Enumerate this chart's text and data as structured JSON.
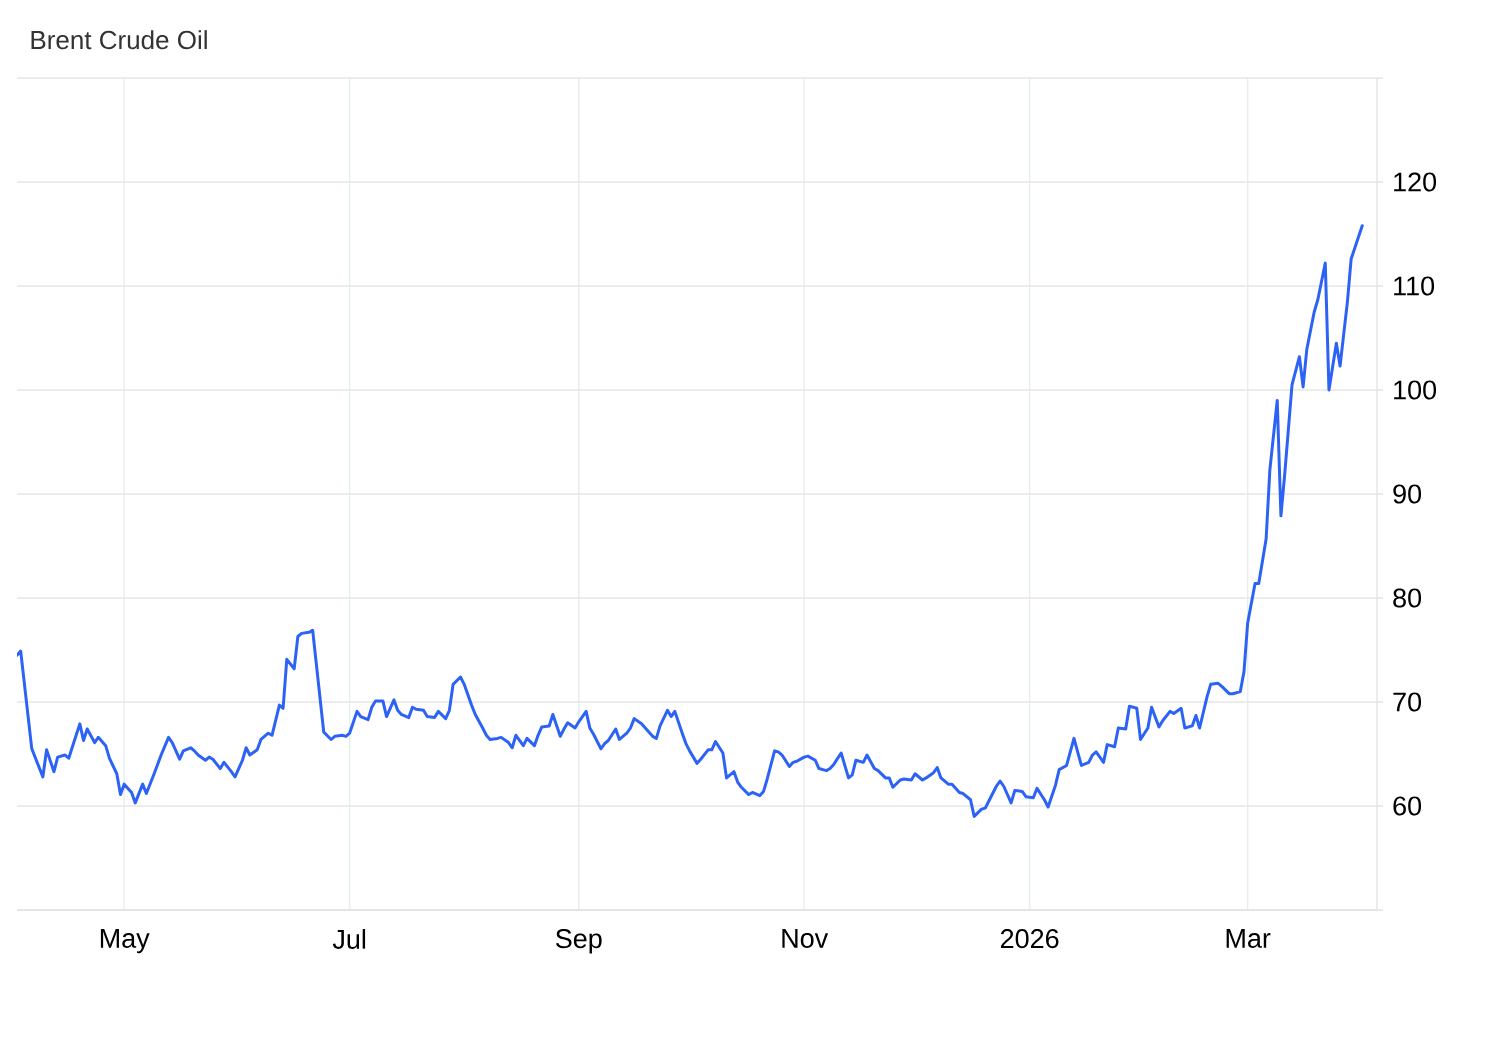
{
  "chart_data": {
    "type": "line",
    "title": "Brent Crude Oil",
    "x": [
      "2025-04-02",
      "2025-04-03",
      "2025-04-06",
      "2025-04-09",
      "2025-04-10",
      "2025-04-12",
      "2025-04-13",
      "2025-04-15",
      "2025-04-16",
      "2025-04-17",
      "2025-04-19",
      "2025-04-20",
      "2025-04-21",
      "2025-04-23",
      "2025-04-24",
      "2025-04-26",
      "2025-04-27",
      "2025-04-29",
      "2025-04-30",
      "2025-05-01",
      "2025-05-03",
      "2025-05-04",
      "2025-05-06",
      "2025-05-07",
      "2025-05-09",
      "2025-05-11",
      "2025-05-13",
      "2025-05-14",
      "2025-05-16",
      "2025-05-17",
      "2025-05-19",
      "2025-05-20",
      "2025-05-21",
      "2025-05-23",
      "2025-05-24",
      "2025-05-25",
      "2025-05-27",
      "2025-05-28",
      "2025-05-30",
      "2025-05-31",
      "2025-06-02",
      "2025-06-03",
      "2025-06-04",
      "2025-06-06",
      "2025-06-07",
      "2025-06-09",
      "2025-06-10",
      "2025-06-12",
      "2025-06-13",
      "2025-06-14",
      "2025-06-16",
      "2025-06-17",
      "2025-06-18",
      "2025-06-20",
      "2025-06-21",
      "2025-06-24",
      "2025-06-26",
      "2025-06-27",
      "2025-06-29",
      "2025-06-30",
      "2025-07-01",
      "2025-07-03",
      "2025-07-04",
      "2025-07-06",
      "2025-07-07",
      "2025-07-08",
      "2025-07-10",
      "2025-07-11",
      "2025-07-13",
      "2025-07-14",
      "2025-07-15",
      "2025-07-17",
      "2025-07-18",
      "2025-07-19",
      "2025-07-21",
      "2025-07-22",
      "2025-07-24",
      "2025-07-25",
      "2025-07-27",
      "2025-07-28",
      "2025-07-29",
      "2025-07-31",
      "2025-08-01",
      "2025-08-03",
      "2025-08-04",
      "2025-08-06",
      "2025-08-07",
      "2025-08-08",
      "2025-08-10",
      "2025-08-11",
      "2025-08-13",
      "2025-08-14",
      "2025-08-15",
      "2025-08-17",
      "2025-08-18",
      "2025-08-20",
      "2025-08-21",
      "2025-08-22",
      "2025-08-24",
      "2025-08-25",
      "2025-08-27",
      "2025-08-28",
      "2025-08-29",
      "2025-08-31",
      "2025-09-01",
      "2025-09-03",
      "2025-09-04",
      "2025-09-05",
      "2025-09-07",
      "2025-09-08",
      "2025-09-09",
      "2025-09-11",
      "2025-09-12",
      "2025-09-14",
      "2025-09-15",
      "2025-09-16",
      "2025-09-18",
      "2025-09-19",
      "2025-09-21",
      "2025-09-22",
      "2025-09-23",
      "2025-09-25",
      "2025-09-26",
      "2025-09-27",
      "2025-09-29",
      "2025-09-30",
      "2025-10-01",
      "2025-10-03",
      "2025-10-04",
      "2025-10-06",
      "2025-10-07",
      "2025-10-08",
      "2025-10-10",
      "2025-10-11",
      "2025-10-13",
      "2025-10-14",
      "2025-10-15",
      "2025-10-17",
      "2025-10-18",
      "2025-10-20",
      "2025-10-21",
      "2025-10-22",
      "2025-10-24",
      "2025-10-25",
      "2025-10-26",
      "2025-10-28",
      "2025-10-29",
      "2025-10-30",
      "2025-11-01",
      "2025-11-02",
      "2025-11-04",
      "2025-11-05",
      "2025-11-07",
      "2025-11-08",
      "2025-11-09",
      "2025-11-11",
      "2025-11-13",
      "2025-11-14",
      "2025-11-15",
      "2025-11-17",
      "2025-11-18",
      "2025-11-20",
      "2025-11-21",
      "2025-11-23",
      "2025-11-24",
      "2025-11-25",
      "2025-11-27",
      "2025-11-28",
      "2025-11-30",
      "2025-12-01",
      "2025-12-03",
      "2025-12-04",
      "2025-12-06",
      "2025-12-07",
      "2025-12-08",
      "2025-12-10",
      "2025-12-11",
      "2025-12-13",
      "2025-12-14",
      "2025-12-16",
      "2025-12-17",
      "2025-12-19",
      "2025-12-20",
      "2025-12-21",
      "2025-12-23",
      "2025-12-24",
      "2025-12-25",
      "2025-12-27",
      "2025-12-28",
      "2025-12-30",
      "2025-12-31",
      "2026-01-02",
      "2026-01-03",
      "2026-01-05",
      "2026-01-06",
      "2026-01-08",
      "2026-01-09",
      "2026-01-11",
      "2026-01-13",
      "2026-01-15",
      "2026-01-17",
      "2026-01-18",
      "2026-01-19",
      "2026-01-21",
      "2026-01-22",
      "2026-01-24",
      "2026-01-25",
      "2026-01-27",
      "2026-01-28",
      "2026-01-30",
      "2026-01-31",
      "2026-02-02",
      "2026-02-03",
      "2026-02-05",
      "2026-02-06",
      "2026-02-08",
      "2026-02-09",
      "2026-02-11",
      "2026-02-12",
      "2026-02-14",
      "2026-02-15",
      "2026-02-16",
      "2026-02-18",
      "2026-02-19",
      "2026-02-21",
      "2026-02-22",
      "2026-02-24",
      "2026-02-25",
      "2026-02-27",
      "2026-02-28",
      "2026-03-01",
      "2026-03-03",
      "2026-03-04",
      "2026-03-06",
      "2026-03-07",
      "2026-03-09",
      "2026-03-10",
      "2026-03-11",
      "2026-03-13",
      "2026-03-15",
      "2026-03-16",
      "2026-03-17",
      "2026-03-19",
      "2026-03-20",
      "2026-03-22",
      "2026-03-23",
      "2026-03-25",
      "2026-03-26",
      "2026-03-28",
      "2026-03-29",
      "2026-04-01"
    ],
    "series": [
      {
        "color": "#2d63f5",
        "values": [
          74.5,
          74.9,
          65.5,
          62.8,
          65.4,
          63.3,
          64.7,
          64.9,
          64.6,
          65.7,
          67.9,
          66.3,
          67.4,
          66.1,
          66.6,
          65.8,
          64.6,
          63.1,
          61.1,
          62.1,
          61.3,
          60.3,
          62.1,
          61.2,
          63.0,
          64.9,
          66.6,
          66.1,
          64.5,
          65.3,
          65.6,
          65.3,
          64.9,
          64.4,
          64.7,
          64.5,
          63.6,
          64.2,
          63.3,
          62.8,
          64.4,
          65.6,
          64.9,
          65.4,
          66.4,
          67.0,
          66.8,
          69.7,
          69.4,
          74.1,
          73.2,
          76.3,
          76.6,
          76.7,
          76.9,
          67.1,
          66.4,
          66.7,
          66.8,
          66.7,
          67.0,
          69.1,
          68.6,
          68.3,
          69.5,
          70.1,
          70.1,
          68.6,
          70.2,
          69.2,
          68.8,
          68.5,
          69.5,
          69.3,
          69.2,
          68.6,
          68.5,
          69.1,
          68.4,
          69.2,
          71.7,
          72.4,
          71.7,
          69.7,
          68.8,
          67.5,
          66.8,
          66.4,
          66.5,
          66.6,
          66.1,
          65.6,
          66.8,
          65.8,
          66.5,
          65.8,
          66.8,
          67.6,
          67.7,
          68.8,
          66.7,
          67.4,
          68.0,
          67.5,
          68.1,
          69.1,
          67.5,
          66.9,
          65.5,
          66.0,
          66.3,
          67.4,
          66.4,
          67.0,
          67.5,
          68.4,
          67.9,
          67.5,
          66.7,
          66.5,
          67.7,
          69.2,
          68.6,
          69.1,
          67.0,
          66.0,
          65.3,
          64.1,
          64.5,
          65.4,
          65.4,
          66.2,
          65.1,
          62.7,
          63.3,
          62.3,
          61.8,
          61.1,
          61.3,
          61.0,
          61.4,
          62.6,
          65.3,
          65.2,
          64.9,
          63.8,
          64.2,
          64.3,
          64.7,
          64.8,
          64.4,
          63.6,
          63.4,
          63.6,
          64.0,
          65.1,
          62.7,
          63.0,
          64.4,
          64.2,
          64.9,
          63.6,
          63.4,
          62.7,
          62.7,
          61.8,
          62.5,
          62.6,
          62.5,
          63.1,
          62.5,
          62.7,
          63.2,
          63.7,
          62.7,
          62.1,
          62.1,
          61.3,
          61.2,
          60.6,
          59.0,
          59.7,
          59.8,
          60.5,
          61.9,
          62.4,
          61.9,
          60.3,
          61.5,
          61.4,
          60.9,
          60.8,
          61.7,
          60.6,
          59.9,
          62.0,
          63.5,
          63.9,
          66.5,
          63.9,
          64.2,
          64.9,
          65.2,
          64.2,
          65.9,
          65.7,
          67.5,
          67.4,
          69.6,
          69.4,
          66.4,
          67.5,
          69.5,
          67.6,
          68.2,
          69.1,
          68.9,
          69.4,
          67.5,
          67.7,
          68.7,
          67.5,
          70.5,
          71.7,
          71.8,
          71.5,
          70.8,
          70.8,
          71.0,
          72.9,
          77.6,
          81.4,
          81.4,
          85.7,
          92.3,
          99.0,
          87.9,
          91.8,
          100.5,
          103.2,
          100.3,
          103.9,
          107.5,
          108.7,
          112.2,
          100.0,
          104.5,
          102.3,
          108.5,
          112.6,
          115.8
        ]
      }
    ],
    "xlim": [
      "2025-04-02",
      "2026-04-05"
    ],
    "xticks": [
      {
        "value": "2025-05-01",
        "label": "May"
      },
      {
        "value": "2025-07-01",
        "label": "Jul"
      },
      {
        "value": "2025-09-01",
        "label": "Sep"
      },
      {
        "value": "2025-11-01",
        "label": "Nov"
      },
      {
        "value": "2026-01-01",
        "label": "2026"
      },
      {
        "value": "2026-03-01",
        "label": "Mar"
      }
    ],
    "ylim": [
      50,
      130
    ],
    "yticks": [
      {
        "value": 50,
        "label": null
      },
      60,
      70,
      80,
      90,
      100,
      110,
      120,
      {
        "value": 130,
        "label": null
      }
    ],
    "grid": true
  }
}
